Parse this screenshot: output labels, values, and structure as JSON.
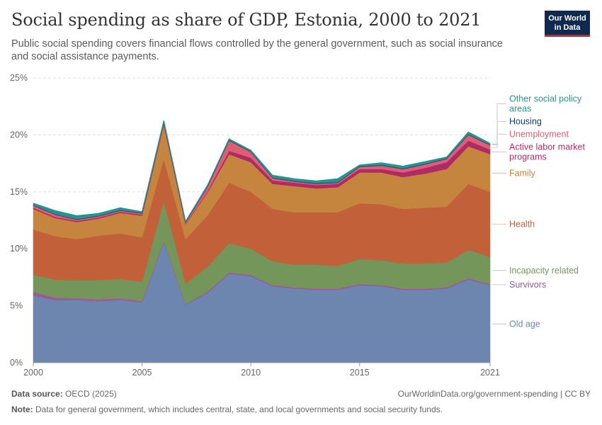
{
  "header": {
    "title": "Social spending as share of GDP, Estonia, 2000 to 2021",
    "subtitle": "Public social spending covers financial flows controlled by the general government, such as social insurance and social assistance payments."
  },
  "logo": {
    "line1": "Our World",
    "line2": "in Data",
    "bg": "#0f2a4e",
    "accent": "#ce261e"
  },
  "footer": {
    "source_label": "Data source:",
    "source_value": "OECD (2025)",
    "link": "OurWorldinData.org/government-spending | CC BY",
    "note_label": "Note:",
    "note_value": "Data for general government, which includes central, state, and local governments and social security funds."
  },
  "chart_data": {
    "type": "area",
    "stacked": true,
    "title": "Social spending as share of GDP, Estonia, 2000 to 2021",
    "x": [
      2000,
      2001,
      2002,
      2003,
      2004,
      2005,
      2006,
      2007,
      2008,
      2009,
      2010,
      2011,
      2012,
      2013,
      2014,
      2015,
      2016,
      2017,
      2018,
      2019,
      2020,
      2021
    ],
    "x_ticks": [
      2000,
      2005,
      2010,
      2015,
      2021
    ],
    "x_tick_labels": [
      "2000",
      "2005",
      "2010",
      "2015",
      "2021"
    ],
    "ylim": [
      0,
      25
    ],
    "y_ticks": [
      0,
      5,
      10,
      15,
      20,
      25
    ],
    "y_tick_labels": [
      "0%",
      "5%",
      "10%",
      "15%",
      "20%",
      "25%"
    ],
    "grid": true,
    "legend_placement": "right, inline labels",
    "series": [
      {
        "name": "Old age",
        "color": "#6d86b0",
        "values": [
          5.9,
          5.5,
          5.5,
          5.4,
          5.5,
          5.3,
          10.6,
          5.1,
          6.1,
          7.8,
          7.6,
          6.7,
          6.5,
          6.4,
          6.4,
          6.8,
          6.7,
          6.4,
          6.4,
          6.5,
          7.3,
          6.8
        ]
      },
      {
        "name": "Survivors",
        "color": "#a2559c",
        "values": [
          0.3,
          0.2,
          0.15,
          0.15,
          0.15,
          0.1,
          0.1,
          0.05,
          0.1,
          0.1,
          0.1,
          0.1,
          0.1,
          0.1,
          0.1,
          0.1,
          0.1,
          0.1,
          0.1,
          0.1,
          0.1,
          0.1
        ]
      },
      {
        "name": "Incapacity related",
        "color": "#74965a",
        "values": [
          1.5,
          1.6,
          1.6,
          1.7,
          1.7,
          1.7,
          3.5,
          1.8,
          2.2,
          2.6,
          2.3,
          2.1,
          2.0,
          2.1,
          2.0,
          2.2,
          2.2,
          2.2,
          2.2,
          2.2,
          2.5,
          2.4
        ]
      },
      {
        "name": "Health",
        "color": "#c2603a",
        "values": [
          4.0,
          3.8,
          3.6,
          3.9,
          4.0,
          3.9,
          3.7,
          3.9,
          4.5,
          5.3,
          5.0,
          4.6,
          4.6,
          4.6,
          4.7,
          4.9,
          4.9,
          4.8,
          4.9,
          4.9,
          5.8,
          5.7
        ]
      },
      {
        "name": "Family",
        "color": "#c6853f",
        "values": [
          1.8,
          1.6,
          1.5,
          1.5,
          1.8,
          1.9,
          3.0,
          1.3,
          2.0,
          2.5,
          2.6,
          2.2,
          2.3,
          2.1,
          2.2,
          2.7,
          2.8,
          2.8,
          3.0,
          3.3,
          3.3,
          3.3
        ]
      },
      {
        "name": "Active labor market programs",
        "color": "#b02a68",
        "values": [
          0.1,
          0.1,
          0.1,
          0.1,
          0.1,
          0.1,
          0.1,
          0.05,
          0.1,
          0.3,
          0.4,
          0.3,
          0.3,
          0.3,
          0.3,
          0.3,
          0.3,
          0.4,
          0.5,
          0.6,
          0.5,
          0.4
        ]
      },
      {
        "name": "Unemployment",
        "color": "#dc5f73",
        "values": [
          0.2,
          0.2,
          0.1,
          0.1,
          0.1,
          0.1,
          0.1,
          0.1,
          0.4,
          0.9,
          0.5,
          0.2,
          0.1,
          0.1,
          0.1,
          0.2,
          0.3,
          0.3,
          0.3,
          0.3,
          0.5,
          0.4
        ]
      },
      {
        "name": "Housing",
        "color": "#18377a",
        "values": [
          0.05,
          0.05,
          0.05,
          0.05,
          0.05,
          0.05,
          0.05,
          0.05,
          0.05,
          0.05,
          0.05,
          0.05,
          0.05,
          0.05,
          0.05,
          0.05,
          0.05,
          0.05,
          0.05,
          0.05,
          0.05,
          0.05
        ]
      },
      {
        "name": "Other social policy areas",
        "color": "#25948c",
        "values": [
          0.15,
          0.3,
          0.3,
          0.2,
          0.2,
          0.1,
          0.1,
          0.05,
          0.1,
          0.1,
          0.1,
          0.2,
          0.2,
          0.2,
          0.3,
          0.1,
          0.2,
          0.2,
          0.2,
          0.1,
          0.2,
          0.1
        ]
      }
    ]
  }
}
